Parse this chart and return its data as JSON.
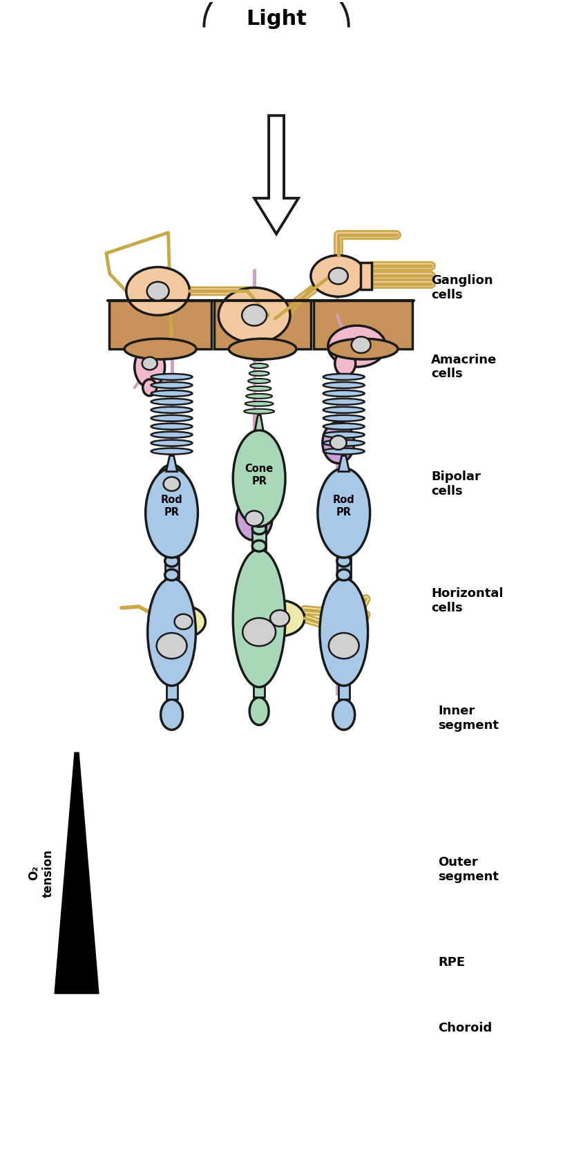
{
  "title": "Light",
  "bg_color": "#ffffff",
  "label_ganglion": "Ganglion\ncells",
  "label_amacrine": "Amacrine\ncells",
  "label_bipolar": "Bipolar\ncells",
  "label_horizontal": "Horizontal\ncells",
  "label_inner": "Inner\nsegment",
  "label_outer": "Outer\nsegment",
  "label_rpe": "RPE",
  "label_choroid": "Choroid",
  "label_o2": "O₂\ntension",
  "label_rod_pr": "Rod\nPR",
  "label_cone_pr": "Cone\nPR",
  "color_ganglion": "#F5C9A0",
  "color_amacrine": "#F2B8CC",
  "color_bipolar": "#C9A0D8",
  "color_horizontal": "#EEEAAA",
  "color_rod": "#A8C8E8",
  "color_cone": "#A8D8B8",
  "color_rpe": "#C8935A",
  "color_nucleus": "#D0D0D0",
  "color_outline": "#1a1a1a",
  "color_axon_pink": "#D0A0C0",
  "color_axon_gold": "#C8A848"
}
